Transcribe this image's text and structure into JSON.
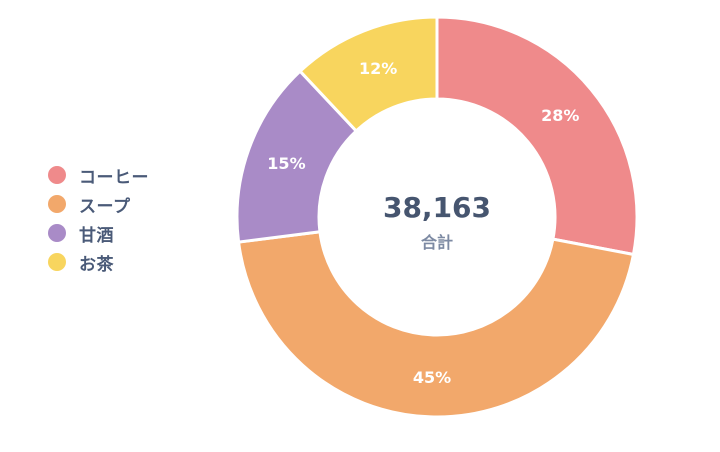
{
  "chart_data": {
    "type": "pie",
    "variant": "donut",
    "categories": [
      "コーヒー",
      "スープ",
      "甘酒",
      "お茶"
    ],
    "values": [
      28,
      45,
      15,
      12
    ],
    "value_labels": [
      "28%",
      "45%",
      "15%",
      "12%"
    ],
    "unit": "%",
    "colors": [
      "#ef8a8b",
      "#f2a86b",
      "#a98bc7",
      "#f8d55e"
    ],
    "center_value": "38,163",
    "center_caption": "合計",
    "legend": {
      "placement": "left",
      "items": [
        {
          "label": "コーヒー",
          "color": "#ef8a8b"
        },
        {
          "label": "スープ",
          "color": "#f2a86b"
        },
        {
          "label": "甘酒",
          "color": "#a98bc7"
        },
        {
          "label": "お茶",
          "color": "#f8d55e"
        }
      ]
    }
  }
}
